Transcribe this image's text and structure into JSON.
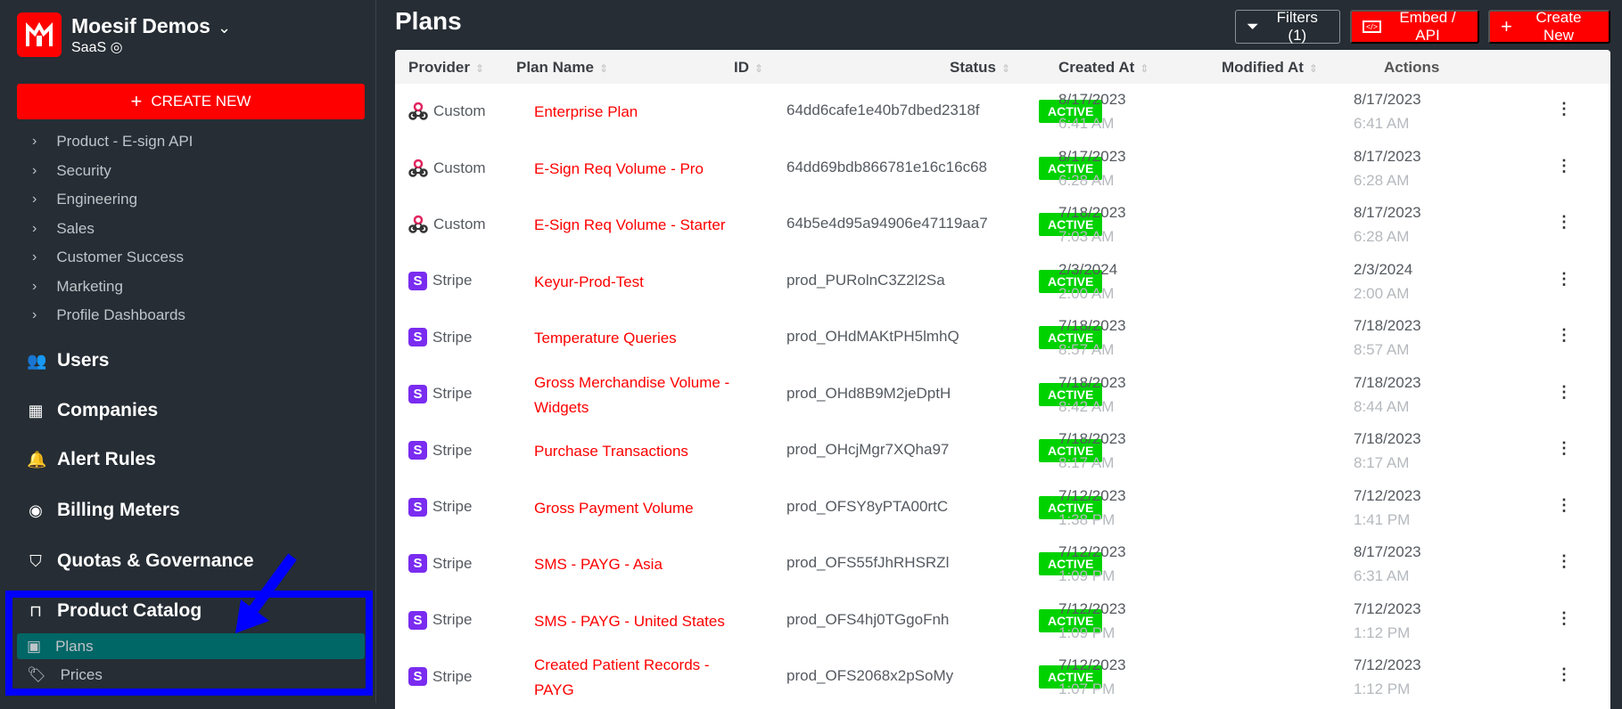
{
  "sidebar": {
    "org_name": "Moesif Demos",
    "env": "SaaS",
    "create_new": "CREATE NEW",
    "dashboards": [
      "Product - E-sign API",
      "Security",
      "Engineering",
      "Sales",
      "Customer Success",
      "Marketing",
      "Profile Dashboards"
    ],
    "nav": [
      {
        "label": "Users",
        "icon": "users-icon"
      },
      {
        "label": "Companies",
        "icon": "building-icon"
      },
      {
        "label": "Alert Rules",
        "icon": "bell-icon"
      },
      {
        "label": "Billing Meters",
        "icon": "meter-icon"
      },
      {
        "label": "Quotas & Governance",
        "icon": "shield-lock-icon"
      },
      {
        "label": "Product Catalog",
        "icon": "box-icon"
      }
    ],
    "catalog_children": [
      {
        "label": "Plans",
        "active": true
      },
      {
        "label": "Prices",
        "active": false
      }
    ]
  },
  "header": {
    "title": "Plans",
    "filters": "Filters (1)",
    "embed": "Embed / API",
    "create_new": "Create New"
  },
  "colors": {
    "brand": "#ff0000",
    "active_badge": "#00d200",
    "selected_nav": "#006666",
    "annotation": "#0000ff",
    "stripe": "#7a2cf0"
  },
  "table": {
    "columns": [
      "Provider",
      "Plan Name",
      "ID",
      "Status",
      "Created At",
      "Modified At",
      "Actions"
    ],
    "rows": [
      {
        "provider": "Custom",
        "name": "Enterprise Plan",
        "id": "64dd6cafe1e40b7dbed2318f",
        "status": "ACTIVE",
        "created_date": "8/17/2023",
        "created_time": "6:41 AM",
        "modified_date": "8/17/2023",
        "modified_time": "6:41 AM"
      },
      {
        "provider": "Custom",
        "name": "E-Sign Req Volume - Pro",
        "id": "64dd69bdb866781e16c16c68",
        "status": "ACTIVE",
        "created_date": "8/17/2023",
        "created_time": "6:28 AM",
        "modified_date": "8/17/2023",
        "modified_time": "6:28 AM"
      },
      {
        "provider": "Custom",
        "name": "E-Sign Req Volume - Starter",
        "id": "64b5e4d95a94906e47119aa7",
        "status": "ACTIVE",
        "created_date": "7/18/2023",
        "created_time": "7:03 AM",
        "modified_date": "8/17/2023",
        "modified_time": "6:28 AM"
      },
      {
        "provider": "Stripe",
        "name": "Keyur-Prod-Test",
        "id": "prod_PURolnC3Z2l2Sa",
        "status": "ACTIVE",
        "created_date": "2/3/2024",
        "created_time": "2:00 AM",
        "modified_date": "2/3/2024",
        "modified_time": "2:00 AM"
      },
      {
        "provider": "Stripe",
        "name": "Temperature Queries",
        "id": "prod_OHdMAKtPH5lmhQ",
        "status": "ACTIVE",
        "created_date": "7/18/2023",
        "created_time": "8:57 AM",
        "modified_date": "7/18/2023",
        "modified_time": "8:57 AM"
      },
      {
        "provider": "Stripe",
        "name": "Gross Merchandise Volume - Widgets",
        "id": "prod_OHd8B9M2jeDptH",
        "status": "ACTIVE",
        "created_date": "7/18/2023",
        "created_time": "8:42 AM",
        "modified_date": "7/18/2023",
        "modified_time": "8:44 AM"
      },
      {
        "provider": "Stripe",
        "name": "Purchase Transactions",
        "id": "prod_OHcjMgr7XQha97",
        "status": "ACTIVE",
        "created_date": "7/18/2023",
        "created_time": "8:17 AM",
        "modified_date": "7/18/2023",
        "modified_time": "8:17 AM"
      },
      {
        "provider": "Stripe",
        "name": "Gross Payment Volume",
        "id": "prod_OFSY8yPTA00rtC",
        "status": "ACTIVE",
        "created_date": "7/12/2023",
        "created_time": "1:38 PM",
        "modified_date": "7/12/2023",
        "modified_time": "1:41 PM"
      },
      {
        "provider": "Stripe",
        "name": "SMS - PAYG - Asia",
        "id": "prod_OFS55fJhRHSRZl",
        "status": "ACTIVE",
        "created_date": "7/12/2023",
        "created_time": "1:09 PM",
        "modified_date": "8/17/2023",
        "modified_time": "6:31 AM"
      },
      {
        "provider": "Stripe",
        "name": "SMS - PAYG - United States",
        "id": "prod_OFS4hj0TGgoFnh",
        "status": "ACTIVE",
        "created_date": "7/12/2023",
        "created_time": "1:09 PM",
        "modified_date": "7/12/2023",
        "modified_time": "1:12 PM"
      },
      {
        "provider": "Stripe",
        "name": "Created Patient Records - PAYG",
        "id": "prod_OFS2068x2pSoMy",
        "status": "ACTIVE",
        "created_date": "7/12/2023",
        "created_time": "1:07 PM",
        "modified_date": "7/12/2023",
        "modified_time": "1:12 PM"
      }
    ]
  }
}
